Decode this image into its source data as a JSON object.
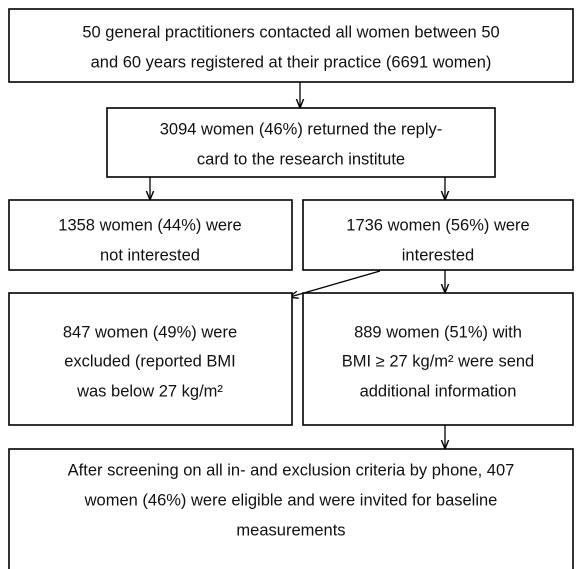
{
  "nodes": [
    {
      "lines": [
        "50 general practitioners contacted all women between 50",
        "and 60 years registered at their practice (6691 women)"
      ]
    },
    {
      "lines": [
        "3094 women (46%) returned the reply-",
        "card to the research institute"
      ]
    },
    {
      "lines": [
        "1358 women (44%) were",
        "not interested"
      ]
    },
    {
      "lines": [
        "1736 women (56%) were",
        "interested"
      ]
    },
    {
      "lines": [
        "847 women (49%) were",
        "excluded (reported BMI",
        "was below 27 kg/m²"
      ]
    },
    {
      "lines": [
        "889 women (51%) with",
        "BMI ≥ 27 kg/m² were send",
        "additional information"
      ]
    },
    {
      "lines": [
        "After screening on all in- and exclusion criteria by phone, 407",
        "women (46%) were eligible and were invited for baseline",
        "measurements"
      ]
    }
  ]
}
